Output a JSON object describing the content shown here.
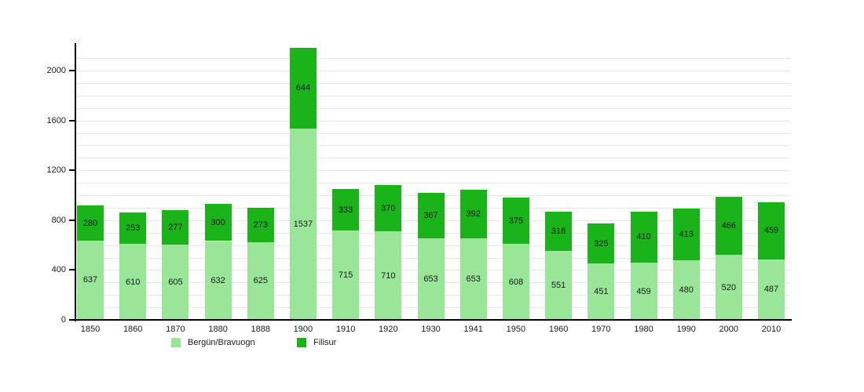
{
  "chart_data": {
    "type": "bar",
    "stacked": true,
    "title": "",
    "xlabel": "",
    "ylabel": "",
    "categories": [
      "1850",
      "1860",
      "1870",
      "1880",
      "1888",
      "1900",
      "1910",
      "1920",
      "1930",
      "1941",
      "1950",
      "1960",
      "1970",
      "1980",
      "1990",
      "2000",
      "2010"
    ],
    "series": [
      {
        "name": "Bergün/Bravuogn",
        "color": "#99e699",
        "values": [
          637,
          610,
          605,
          632,
          625,
          1537,
          715,
          710,
          653,
          653,
          608,
          551,
          451,
          459,
          480,
          520,
          487
        ]
      },
      {
        "name": "Filisur",
        "color": "#1ab31a",
        "values": [
          280,
          253,
          277,
          300,
          273,
          644,
          333,
          370,
          367,
          392,
          375,
          318,
          325,
          410,
          413,
          466,
          459
        ]
      }
    ],
    "ylim": [
      0,
      2190
    ],
    "yticks": [
      0,
      400,
      800,
      1200,
      1600,
      2000
    ],
    "minor_grid_step": 100,
    "grid": "on",
    "legend_position": "bottom",
    "value_labels": "inside-center",
    "background": "#ffffff",
    "axis_color": "#000000",
    "grid_color": "#e7e7e7",
    "label_color": "#1a1a1a"
  }
}
